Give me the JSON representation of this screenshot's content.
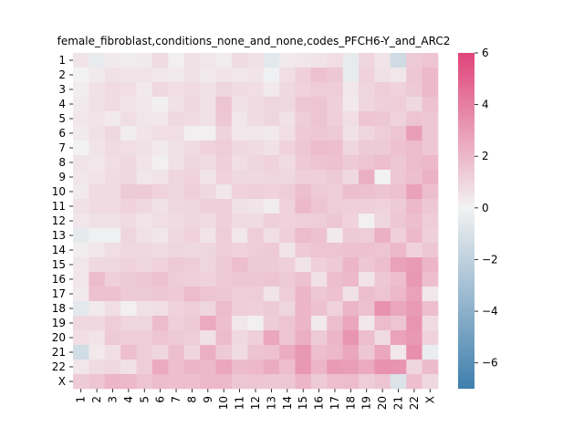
{
  "chart_data": {
    "type": "heatmap",
    "title": "female_fibroblast,conditions_none_and_none,codes_PFCH6-Y_and_ARC2",
    "xlabel": "",
    "ylabel": "",
    "x_labels": [
      "1",
      "2",
      "3",
      "4",
      "5",
      "6",
      "7",
      "8",
      "9",
      "10",
      "11",
      "12",
      "13",
      "14",
      "15",
      "16",
      "17",
      "18",
      "19",
      "20",
      "21",
      "22",
      "X"
    ],
    "y_labels": [
      "1",
      "2",
      "3",
      "4",
      "5",
      "6",
      "7",
      "8",
      "9",
      "10",
      "11",
      "12",
      "13",
      "14",
      "15",
      "16",
      "17",
      "18",
      "19",
      "20",
      "21",
      "22",
      "X"
    ],
    "colorbar": {
      "vmin": -7,
      "vmax": 6,
      "ticks": [
        6,
        4,
        2,
        0,
        -2,
        -4,
        -6
      ]
    },
    "colors": {
      "negative": "#3f7fad",
      "zero": "#f2f2f2",
      "positive": "#e0447a"
    },
    "values": [
      [
        0.5,
        -0.4,
        0.3,
        0.2,
        0.3,
        0.8,
        0.1,
        0.6,
        0.4,
        0.2,
        0.8,
        0.6,
        -0.6,
        0.3,
        0.4,
        0.5,
        0.7,
        -0.4,
        1.0,
        0.5,
        -1.4,
        1.4,
        1.6
      ],
      [
        0.0,
        0.3,
        0.6,
        0.5,
        0.5,
        0.4,
        0.3,
        0.6,
        0.3,
        0.5,
        0.4,
        0.5,
        -0.1,
        0.7,
        1.2,
        1.7,
        1.5,
        -0.4,
        1.1,
        0.6,
        0.4,
        1.5,
        2.0
      ],
      [
        0.2,
        0.6,
        0.8,
        0.7,
        0.3,
        0.9,
        0.7,
        0.8,
        0.6,
        1.0,
        0.8,
        0.7,
        0.3,
        0.9,
        1.1,
        1.3,
        1.3,
        0.4,
        1.0,
        1.3,
        1.1,
        1.4,
        2.0
      ],
      [
        0.3,
        0.6,
        0.8,
        0.5,
        0.4,
        0.1,
        0.6,
        0.9,
        0.6,
        1.6,
        0.6,
        0.8,
        1.0,
        0.9,
        1.5,
        1.6,
        1.2,
        0.3,
        1.0,
        1.2,
        1.3,
        0.9,
        1.7
      ],
      [
        0.4,
        0.5,
        0.3,
        0.7,
        0.4,
        0.4,
        0.9,
        0.8,
        0.6,
        1.5,
        0.4,
        0.8,
        1.0,
        0.6,
        1.3,
        1.6,
        1.2,
        0.7,
        1.6,
        1.5,
        1.1,
        1.6,
        1.5
      ],
      [
        0.3,
        0.6,
        0.9,
        0.2,
        0.5,
        0.7,
        0.7,
        0.1,
        0.1,
        1.1,
        0.4,
        0.4,
        0.3,
        0.7,
        1.4,
        1.5,
        1.4,
        0.6,
        1.0,
        1.3,
        1.6,
        2.9,
        1.5
      ],
      [
        0.0,
        0.5,
        0.8,
        0.7,
        0.6,
        0.3,
        0.6,
        0.8,
        1.1,
        1.3,
        0.9,
        0.8,
        0.6,
        1.1,
        1.5,
        1.9,
        1.8,
        1.0,
        1.4,
        1.4,
        1.7,
        1.9,
        1.5
      ],
      [
        0.5,
        0.4,
        0.7,
        0.9,
        0.5,
        0.1,
        0.6,
        1.0,
        0.8,
        1.2,
        0.7,
        1.0,
        1.1,
        0.8,
        1.4,
        1.6,
        1.7,
        1.4,
        1.6,
        1.8,
        1.5,
        1.9,
        2.0
      ],
      [
        0.4,
        0.5,
        0.8,
        0.9,
        0.4,
        0.5,
        1.0,
        1.1,
        0.5,
        1.1,
        0.9,
        0.9,
        1.0,
        0.9,
        1.2,
        1.2,
        1.4,
        0.9,
        2.3,
        0.0,
        1.5,
        1.8,
        2.2
      ],
      [
        0.3,
        0.8,
        0.8,
        1.4,
        1.4,
        1.1,
        1.0,
        1.2,
        0.9,
        0.4,
        1.1,
        1.2,
        1.1,
        1.3,
        1.8,
        1.4,
        1.3,
        1.8,
        1.7,
        1.6,
        1.7,
        2.8,
        1.8
      ],
      [
        0.6,
        0.8,
        0.8,
        1.1,
        0.9,
        0.6,
        0.9,
        1.0,
        1.2,
        1.2,
        0.6,
        0.5,
        0.2,
        1.1,
        2.0,
        1.6,
        1.3,
        1.2,
        1.2,
        1.1,
        1.4,
        2.0,
        1.5
      ],
      [
        0.4,
        0.6,
        0.6,
        0.8,
        0.5,
        0.7,
        0.8,
        1.0,
        0.8,
        1.2,
        0.8,
        0.8,
        1.2,
        1.1,
        1.2,
        1.3,
        1.5,
        1.1,
        0.1,
        1.0,
        1.5,
        1.8,
        1.3
      ],
      [
        -0.5,
        -0.1,
        -0.1,
        1.0,
        0.6,
        0.4,
        0.9,
        1.1,
        0.5,
        1.3,
        0.4,
        1.3,
        0.7,
        1.2,
        1.9,
        1.7,
        0.3,
        1.4,
        1.3,
        2.3,
        1.2,
        2.0,
        1.2
      ],
      [
        0.2,
        0.4,
        0.7,
        0.9,
        0.9,
        0.8,
        1.0,
        0.9,
        1.0,
        1.3,
        1.1,
        1.3,
        1.4,
        0.5,
        1.4,
        1.6,
        1.6,
        1.7,
        1.7,
        1.6,
        2.0,
        1.1,
        1.5
      ],
      [
        0.4,
        0.9,
        0.9,
        1.1,
        1.0,
        1.1,
        1.4,
        1.3,
        1.0,
        1.4,
        1.8,
        1.4,
        1.4,
        1.2,
        0.5,
        1.2,
        1.4,
        2.1,
        1.5,
        1.8,
        2.8,
        3.0,
        2.1
      ],
      [
        0.4,
        1.9,
        1.2,
        1.4,
        1.5,
        1.7,
        1.3,
        1.2,
        1.1,
        1.4,
        1.5,
        1.5,
        1.6,
        1.4,
        1.7,
        0.6,
        1.8,
        2.0,
        0.5,
        1.5,
        1.8,
        3.1,
        1.8
      ],
      [
        0.3,
        1.7,
        1.7,
        1.4,
        1.4,
        1.5,
        1.4,
        1.9,
        1.6,
        1.5,
        1.3,
        1.3,
        0.5,
        1.3,
        2.1,
        1.5,
        1.7,
        0.6,
        1.8,
        1.6,
        2.0,
        2.8,
        0.4
      ],
      [
        -0.6,
        0.3,
        0.7,
        0.1,
        0.6,
        0.7,
        1.1,
        1.3,
        1.0,
        1.9,
        1.3,
        1.2,
        1.4,
        1.0,
        2.1,
        1.7,
        1.1,
        2.1,
        1.7,
        3.3,
        2.6,
        3.0,
        1.8
      ],
      [
        0.9,
        0.9,
        1.3,
        1.0,
        1.0,
        1.9,
        1.2,
        1.4,
        2.5,
        1.8,
        0.4,
        0.1,
        1.3,
        1.6,
        2.1,
        0.3,
        1.8,
        2.6,
        0.4,
        1.9,
        1.6,
        3.2,
        0.8
      ],
      [
        0.7,
        0.5,
        1.4,
        1.3,
        1.3,
        1.6,
        1.4,
        1.3,
        0.6,
        1.9,
        0.9,
        1.2,
        2.6,
        1.6,
        2.3,
        1.4,
        2.1,
        3.2,
        1.8,
        0.8,
        2.8,
        3.1,
        1.1
      ],
      [
        -1.3,
        0.3,
        0.7,
        1.8,
        1.3,
        1.0,
        1.8,
        1.0,
        2.3,
        1.4,
        0.8,
        1.6,
        1.7,
        2.4,
        3.1,
        1.8,
        2.0,
        2.6,
        1.5,
        2.6,
        0.4,
        3.4,
        -0.3
      ],
      [
        0.4,
        0.8,
        0.9,
        0.6,
        1.3,
        2.5,
        1.8,
        2.1,
        2.0,
        2.6,
        1.9,
        2.0,
        2.4,
        1.8,
        3.1,
        2.1,
        3.0,
        2.9,
        2.5,
        3.3,
        3.2,
        1.0,
        1.9
      ],
      [
        1.4,
        1.6,
        2.1,
        2.0,
        1.6,
        1.9,
        1.8,
        1.8,
        2.0,
        2.0,
        1.5,
        1.6,
        1.5,
        1.5,
        2.1,
        1.4,
        1.8,
        1.9,
        1.3,
        1.6,
        -0.9,
        1.8,
        0.9
      ]
    ]
  }
}
